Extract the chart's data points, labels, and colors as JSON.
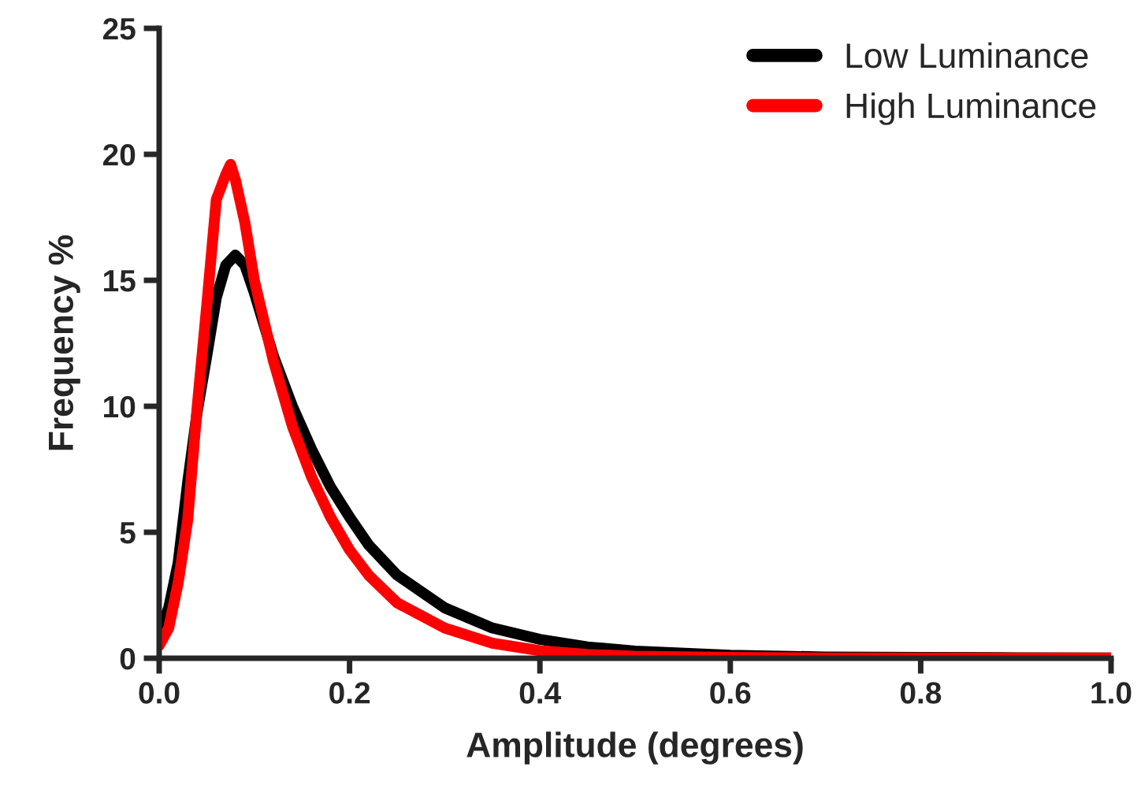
{
  "chart_data": {
    "type": "line",
    "xlabel": "Amplitude (degrees)",
    "ylabel": "Frequency %",
    "xlim": [
      0,
      1.0
    ],
    "xticks": [
      {
        "value": 0,
        "label": "0.0"
      },
      0.2,
      0.4,
      0.6,
      0.8,
      {
        "value": 1.0,
        "label": "1.0"
      }
    ],
    "ylim": [
      0,
      25
    ],
    "yticks": [
      0,
      5,
      10,
      15,
      20,
      25
    ],
    "grid": false,
    "legend": "top right",
    "marker": "none",
    "line_style": "solid",
    "series": [
      {
        "name": "Low Luminance",
        "color": "#000000",
        "x": [
          0,
          0.01,
          0.02,
          0.03,
          0.04,
          0.05,
          0.06,
          0.07,
          0.08,
          0.09,
          0.1,
          0.12,
          0.14,
          0.16,
          0.18,
          0.2,
          0.22,
          0.25,
          0.3,
          0.35,
          0.4,
          0.45,
          0.5,
          0.6,
          0.7,
          0.8,
          0.9,
          1.0
        ],
        "values": [
          1.0,
          2.0,
          3.8,
          7,
          9.8,
          12,
          14.3,
          15.6,
          16.0,
          15.6,
          14.5,
          12,
          10,
          8.3,
          6.8,
          5.6,
          4.5,
          3.3,
          2.0,
          1.2,
          0.75,
          0.45,
          0.28,
          0.12,
          0.05,
          0.03,
          0.02,
          0.01
        ]
      },
      {
        "name": "High Luminance",
        "color": "#ff0000",
        "x": [
          0,
          0.01,
          0.02,
          0.03,
          0.04,
          0.05,
          0.06,
          0.07,
          0.075,
          0.08,
          0.09,
          0.1,
          0.12,
          0.14,
          0.16,
          0.18,
          0.2,
          0.22,
          0.25,
          0.3,
          0.35,
          0.4,
          0.45,
          0.5,
          0.6,
          0.7,
          0.8,
          0.9,
          1.0
        ],
        "values": [
          0.5,
          1.2,
          3.0,
          5.5,
          10,
          14,
          18.2,
          19.2,
          19.6,
          19.0,
          17.3,
          15,
          11.8,
          9.2,
          7.2,
          5.6,
          4.3,
          3.3,
          2.2,
          1.2,
          0.6,
          0.3,
          0.15,
          0.08,
          0.03,
          0.01,
          0.01,
          0.01,
          0.01
        ]
      }
    ]
  }
}
